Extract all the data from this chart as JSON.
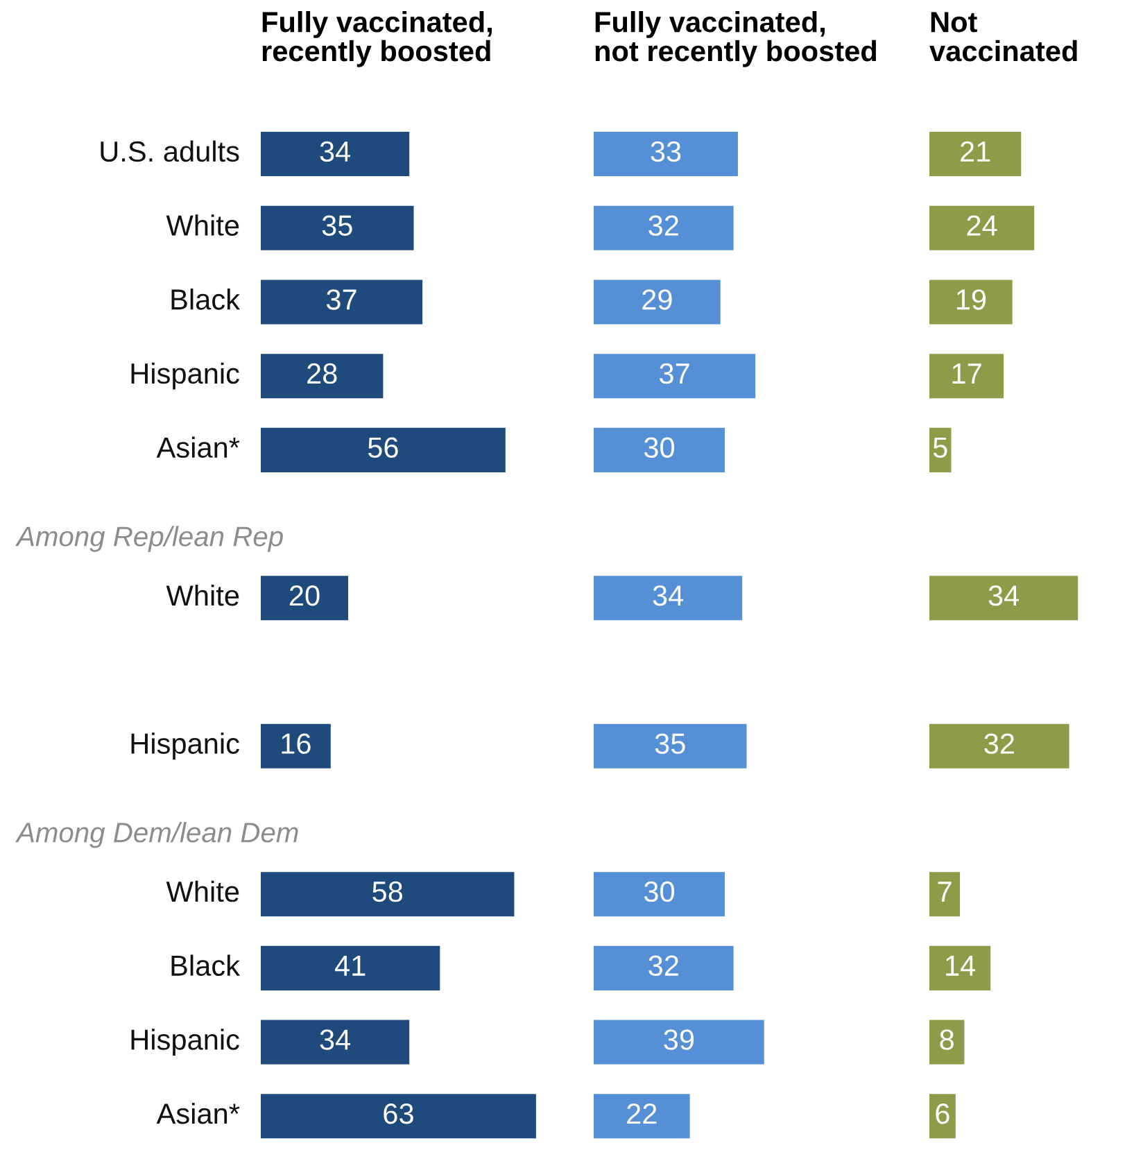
{
  "chart_data": [
    {
      "type": "bar",
      "orientation": "horizontal",
      "title": "Fully vaccinated,\nrecently boosted",
      "categories": [
        "U.S. adults",
        "White",
        "Black",
        "Hispanic",
        "Asian*",
        null,
        "White",
        null,
        "Hispanic",
        null,
        "White",
        "Black",
        "Hispanic",
        "Asian*"
      ],
      "values": [
        34,
        35,
        37,
        28,
        56,
        null,
        20,
        null,
        16,
        null,
        58,
        41,
        34,
        63
      ],
      "color": "#1f4a7c",
      "data_labels": true,
      "tick_labels": "y",
      "annotations": [
        "Among Rep/lean Rep",
        "Among Dem/lean Dem"
      ]
    },
    {
      "type": "bar",
      "orientation": "horizontal",
      "title": "Fully vaccinated,\nnot recently boosted",
      "categories": [
        "U.S. adults",
        "White",
        "Black",
        "Hispanic",
        "Asian*",
        null,
        "White",
        null,
        "Hispanic",
        null,
        "White",
        "Black",
        "Hispanic",
        "Asian*"
      ],
      "values": [
        33,
        32,
        29,
        37,
        30,
        null,
        34,
        null,
        35,
        null,
        30,
        32,
        39,
        22
      ],
      "color": "#558fd6",
      "data_labels": true,
      "tick_labels": false
    },
    {
      "type": "bar",
      "orientation": "horizontal",
      "title": "Not\nvaccinated",
      "categories": [
        "U.S. adults",
        "White",
        "Black",
        "Hispanic",
        "Asian*",
        null,
        "White",
        null,
        "Hispanic",
        null,
        "White",
        "Black",
        "Hispanic",
        "Asian*"
      ],
      "values": [
        21,
        24,
        19,
        17,
        5,
        null,
        34,
        null,
        32,
        null,
        7,
        14,
        8,
        6
      ],
      "color": "#8c9c48",
      "data_labels": true,
      "tick_labels": false
    }
  ]
}
